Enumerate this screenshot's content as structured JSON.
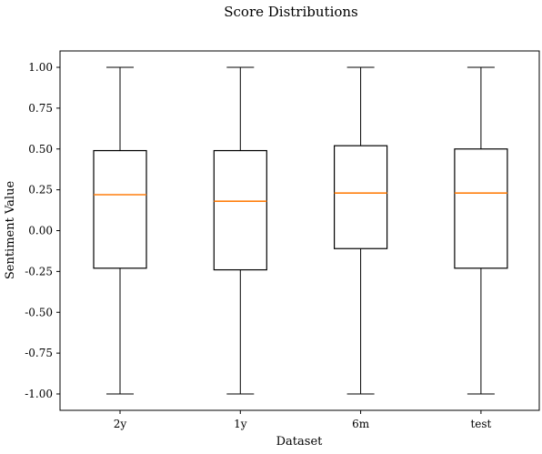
{
  "chart_data": {
    "type": "box",
    "title": "Score Distributions",
    "xlabel": "Dataset",
    "ylabel": "Sentiment Value",
    "ylim": [
      -1.1,
      1.1
    ],
    "yticks": [
      1.0,
      0.75,
      0.5,
      0.25,
      0.0,
      -0.25,
      -0.5,
      -0.75,
      -1.0
    ],
    "ytick_labels": [
      "1.00",
      "0.75",
      "0.50",
      "0.25",
      "0.00",
      "-0.25",
      "-0.50",
      "-0.75",
      "-1.00"
    ],
    "categories": [
      "2y",
      "1y",
      "6m",
      "test"
    ],
    "boxes": [
      {
        "whisker_low": -1.0,
        "q1": -0.23,
        "median": 0.22,
        "q3": 0.49,
        "whisker_high": 1.0
      },
      {
        "whisker_low": -1.0,
        "q1": -0.24,
        "median": 0.18,
        "q3": 0.49,
        "whisker_high": 1.0
      },
      {
        "whisker_low": -1.0,
        "q1": -0.11,
        "median": 0.23,
        "q3": 0.52,
        "whisker_high": 1.0
      },
      {
        "whisker_low": -1.0,
        "q1": -0.23,
        "median": 0.23,
        "q3": 0.5,
        "whisker_high": 1.0
      }
    ],
    "median_color": "#ff7f0e",
    "box_color": "#000000",
    "grid": false,
    "legend": false
  }
}
